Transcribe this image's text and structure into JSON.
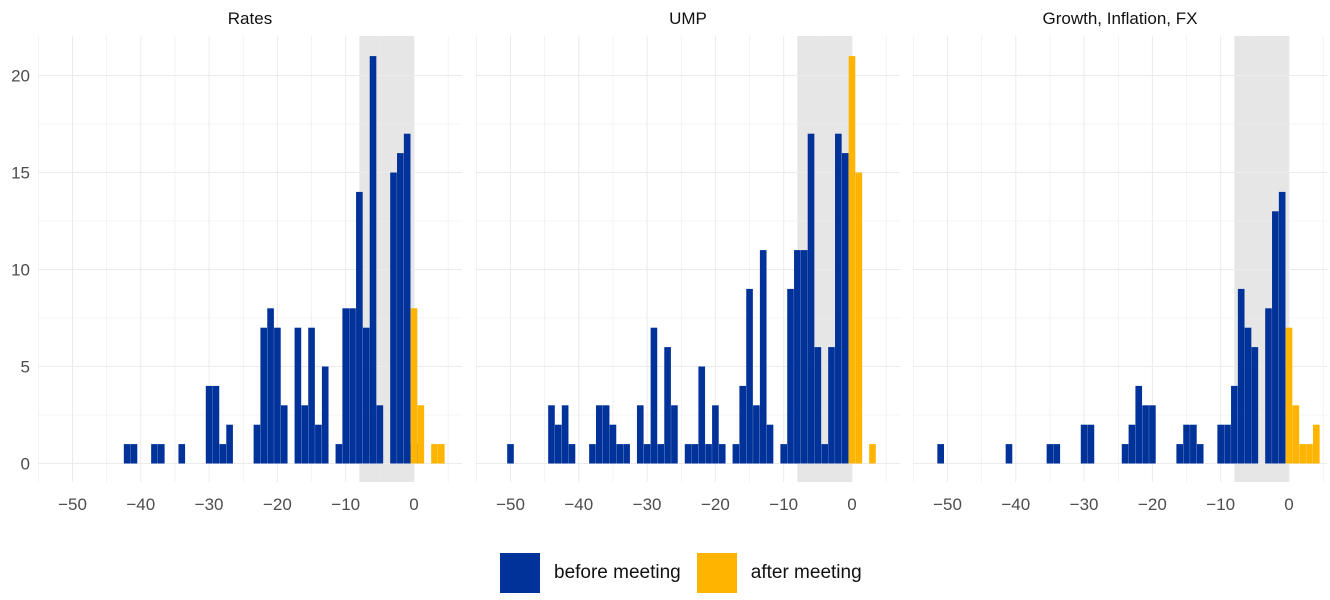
{
  "chart_data": [
    {
      "type": "bar",
      "title": "Rates",
      "xlim": [
        -55,
        5
      ],
      "ylim": [
        0,
        22
      ],
      "xticks": [
        "−50",
        "−40",
        "−30",
        "−20",
        "−10",
        "0"
      ],
      "yticks": [
        "0",
        "5",
        "10",
        "15",
        "20"
      ],
      "shaded_region": [
        -8,
        0
      ],
      "bin_width": 1,
      "series": [
        {
          "name": "before meeting",
          "x": [
            -42,
            -41,
            -38,
            -37,
            -34,
            -30,
            -29,
            -28,
            -27,
            -23,
            -22,
            -21,
            -20,
            -19,
            -17,
            -16,
            -15,
            -14,
            -13,
            -11,
            -10,
            -9,
            -8,
            -7,
            -6,
            -5,
            -3,
            -2,
            -1,
            0
          ],
          "values": [
            1,
            1,
            1,
            1,
            1,
            4,
            4,
            1,
            2,
            2,
            7,
            8,
            7,
            3,
            7,
            3,
            7,
            2,
            5,
            1,
            8,
            8,
            14,
            7,
            21,
            3,
            15,
            16,
            17,
            1
          ]
        },
        {
          "name": "after meeting",
          "x": [
            0,
            1,
            3,
            4
          ],
          "values": [
            8,
            3,
            1,
            1
          ]
        }
      ]
    },
    {
      "type": "bar",
      "title": "UMP",
      "xlim": [
        -55,
        5
      ],
      "ylim": [
        0,
        22
      ],
      "xticks": [
        "−50",
        "−40",
        "−30",
        "−20",
        "−10",
        "0"
      ],
      "yticks": [
        "0",
        "5",
        "10",
        "15",
        "20"
      ],
      "shaded_region": [
        -8,
        0
      ],
      "bin_width": 1,
      "series": [
        {
          "name": "before meeting",
          "x": [
            -50,
            -44,
            -43,
            -42,
            -41,
            -38,
            -37,
            -36,
            -35,
            -34,
            -33,
            -31,
            -30,
            -29,
            -28,
            -27,
            -26,
            -24,
            -23,
            -22,
            -21,
            -20,
            -19,
            -17,
            -16,
            -15,
            -14,
            -13,
            -12,
            -10,
            -9,
            -8,
            -7,
            -6,
            -5,
            -4,
            -3,
            -2,
            -1
          ],
          "values": [
            1,
            3,
            2,
            3,
            1,
            1,
            3,
            3,
            2,
            1,
            1,
            3,
            1,
            7,
            1,
            6,
            3,
            1,
            1,
            5,
            1,
            3,
            1,
            1,
            4,
            9,
            3,
            11,
            2,
            1,
            9,
            11,
            11,
            17,
            6,
            1,
            6,
            17,
            16
          ]
        },
        {
          "name": "after meeting",
          "x": [
            0,
            1,
            3
          ],
          "values": [
            21,
            15,
            1
          ]
        }
      ]
    },
    {
      "type": "bar",
      "title": "Growth, Inflation, FX",
      "xlim": [
        -55,
        5
      ],
      "ylim": [
        0,
        22
      ],
      "xticks": [
        "−50",
        "−40",
        "−30",
        "−20",
        "−10",
        "0"
      ],
      "yticks": [
        "0",
        "5",
        "10",
        "15",
        "20"
      ],
      "shaded_region": [
        -8,
        0
      ],
      "bin_width": 1,
      "series": [
        {
          "name": "before meeting",
          "x": [
            -51,
            -41,
            -35,
            -34,
            -30,
            -29,
            -24,
            -23,
            -22,
            -21,
            -20,
            -16,
            -15,
            -14,
            -13,
            -10,
            -9,
            -8,
            -7,
            -6,
            -5,
            -3,
            -2,
            -1
          ],
          "values": [
            1,
            1,
            1,
            1,
            2,
            2,
            1,
            2,
            4,
            3,
            3,
            1,
            2,
            2,
            1,
            2,
            2,
            4,
            9,
            7,
            6,
            8,
            13,
            14
          ]
        },
        {
          "name": "after meeting",
          "x": [
            0,
            1,
            2,
            3,
            4
          ],
          "values": [
            7,
            3,
            1,
            1,
            2
          ]
        }
      ]
    }
  ],
  "legend": {
    "placement": "bottom",
    "items": [
      {
        "label": "before meeting",
        "color": "#003299"
      },
      {
        "label": "after meeting",
        "color": "#FFB400"
      }
    ]
  },
  "colors": {
    "before": "#003299",
    "after": "#FFB400",
    "shade": "#e6e6e6",
    "grid": "#ebebeb",
    "tick_text": "#4d4d4d",
    "title_text": "#111111"
  }
}
